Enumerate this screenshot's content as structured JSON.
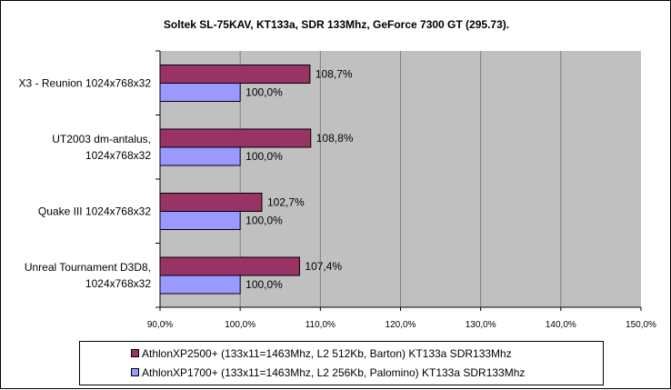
{
  "chart_data": {
    "type": "bar",
    "orientation": "horizontal",
    "title": "Soltek SL-75KAV, KT133a, SDR 133Mhz, GeForce 7300 GT (295.73).",
    "categories": [
      [
        "X3 - Reunion 1024x768x32"
      ],
      [
        "UT2003 dm-antalus,",
        "1024x768x32"
      ],
      [
        "Quake III 1024x768x32"
      ],
      [
        "Unreal Tournament D3D8,",
        "1024x768x32"
      ]
    ],
    "series": [
      {
        "name": "AthlonXP2500+ (133x11=1463Mhz, L2 512Kb, Barton) KT133a SDR133Mhz",
        "color": "#993366",
        "values": [
          108.7,
          108.8,
          102.7,
          107.4
        ],
        "labels": [
          "108,7%",
          "108,8%",
          "102,7%",
          "107,4%"
        ]
      },
      {
        "name": "AthlonXP1700+ (133x11=1463Mhz, L2 256Kb, Palomino) KT133a SDR133Mhz",
        "color": "#9999FF",
        "values": [
          100.0,
          100.0,
          100.0,
          100.0
        ],
        "labels": [
          "100,0%",
          "100,0%",
          "100,0%",
          "100,0%"
        ]
      }
    ],
    "xlim": [
      90,
      150
    ],
    "xticks": [
      90,
      100,
      110,
      120,
      130,
      140,
      150
    ],
    "xtick_labels": [
      "90,0%",
      "100,0%",
      "110,0%",
      "120,0%",
      "130,0%",
      "140,0%",
      "150,0%"
    ],
    "grid": true,
    "plot_bg": "#C0C0C0",
    "legend_position": "bottom"
  }
}
